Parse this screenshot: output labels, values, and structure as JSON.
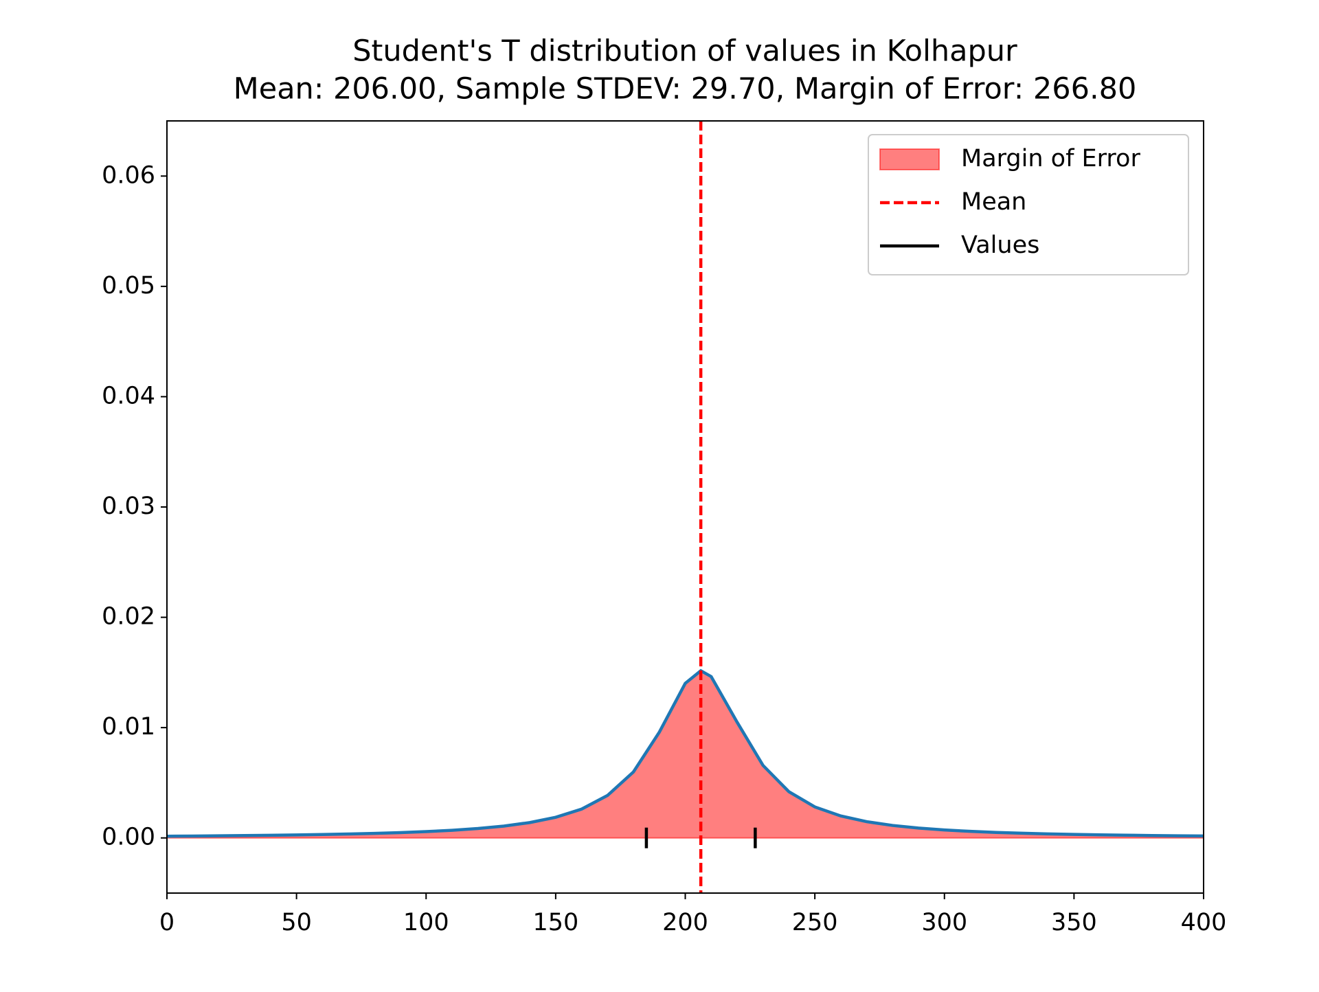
{
  "chart_data": {
    "type": "density",
    "title": "Student's T distribution of values in Kolhapur",
    "subtitle": "Mean: 206.00, Sample STDEV: 29.70, Margin of Error: 266.80",
    "x": [
      0,
      10,
      20,
      30,
      40,
      50,
      60,
      70,
      80,
      90,
      100,
      110,
      120,
      130,
      140,
      150,
      160,
      170,
      180,
      190,
      200,
      206,
      210,
      220,
      230,
      240,
      250,
      260,
      270,
      280,
      290,
      300,
      310,
      320,
      330,
      340,
      350,
      360,
      370,
      380,
      390,
      400
    ],
    "density": {
      "color": "#1f77b4",
      "values": [
        0.000156,
        0.000172,
        0.000191,
        0.000213,
        0.000239,
        0.00027,
        0.000307,
        0.000353,
        0.00041,
        0.000481,
        0.000572,
        0.000692,
        0.000853,
        0.001075,
        0.001393,
        0.001869,
        0.002614,
        0.003848,
        0.005984,
        0.009591,
        0.014014,
        0.015158,
        0.014627,
        0.010494,
        0.006573,
        0.004186,
        0.002812,
        0.001991,
        0.001473,
        0.00113,
        0.000892,
        0.000721,
        0.000594,
        0.000497,
        0.000423,
        0.000363,
        0.000316,
        0.000277,
        0.000245,
        0.000218,
        0.000195,
        0.000176
      ]
    },
    "fill": {
      "name": "Margin of Error",
      "color": "#ff0000",
      "opacity": 0.5
    },
    "mean": {
      "name": "Mean",
      "value": 206,
      "color": "#ff0000"
    },
    "observations": {
      "name": "Values",
      "color": "#000000",
      "values": [
        185,
        227
      ]
    },
    "xlim": [
      0,
      400
    ],
    "xticks": [
      0,
      50,
      100,
      150,
      200,
      250,
      300,
      350,
      400
    ],
    "ylim": [
      -0.005,
      0.065
    ],
    "yticks": [
      {
        "value": 0,
        "label": "0.00"
      },
      {
        "value": 0.01,
        "label": "0.01"
      },
      {
        "value": 0.02,
        "label": "0.02"
      },
      {
        "value": 0.03,
        "label": "0.03"
      },
      {
        "value": 0.04,
        "label": "0.04"
      },
      {
        "value": 0.05,
        "label": "0.05"
      },
      {
        "value": 0.06,
        "label": "0.06"
      }
    ],
    "legend": "upper right"
  }
}
